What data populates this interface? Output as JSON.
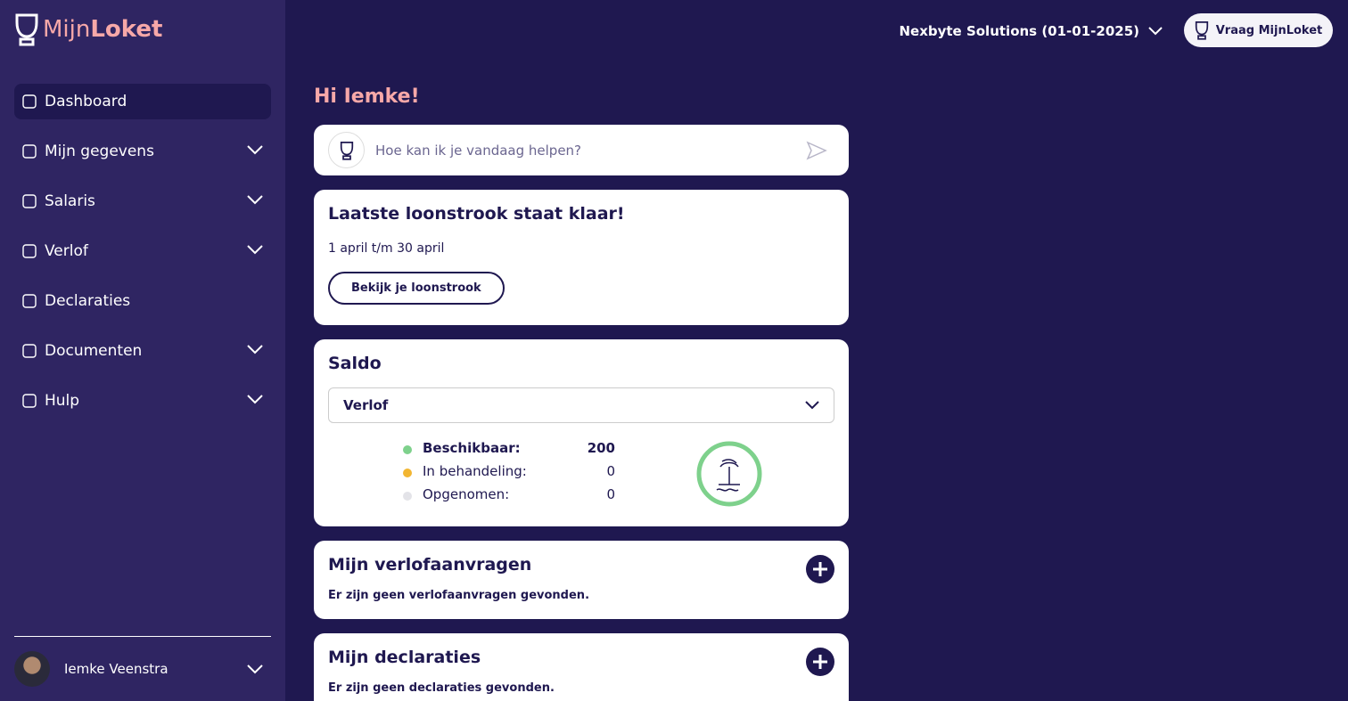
{
  "sidebar": {
    "logo": {
      "prefix": "Mijn",
      "suffix": "Loket"
    },
    "nav": [
      {
        "label": "Dashboard"
      },
      {
        "label": "Mijn gegevens"
      },
      {
        "label": "Salaris"
      },
      {
        "label": "Verlof"
      },
      {
        "label": "Declaraties"
      },
      {
        "label": "Documenten"
      },
      {
        "label": "Hulp"
      }
    ],
    "user": {
      "name": "Iemke Veenstra"
    }
  },
  "header": {
    "employer": "Nexbyte Solutions (01-01-2025)",
    "ask_button": "Vraag MijnLoket"
  },
  "greeting": "Hi Iemke!",
  "chat": {
    "placeholder": "Hoe kan ik je vandaag helpen?"
  },
  "payslip": {
    "title": "Laatste loonstrook staat klaar!",
    "period": "1 april t/m 30 april",
    "button": "Bekijk je loonstrook"
  },
  "balance": {
    "title": "Saldo",
    "selected": "Verlof",
    "rows": [
      {
        "label": "Beschikbaar:",
        "value": 200
      },
      {
        "label": "In behandeling:",
        "value": 0
      },
      {
        "label": "Opgenomen:",
        "value": 0
      }
    ]
  },
  "leave_requests": {
    "title": "Mijn verlofaanvragen",
    "empty": "Er zijn geen verlofaanvragen gevonden."
  },
  "claims": {
    "title": "Mijn declaraties",
    "empty": "Er zijn geen declaraties gevonden."
  }
}
